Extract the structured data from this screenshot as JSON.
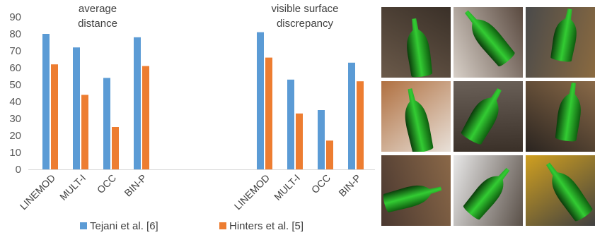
{
  "chart_data": {
    "type": "bar",
    "ylim": [
      0,
      90
    ],
    "yticks": [
      0,
      10,
      20,
      30,
      40,
      50,
      60,
      70,
      80,
      90
    ],
    "grid": false,
    "legend_position": "bottom",
    "series_colors": [
      "#5b9bd5",
      "#ed7d31"
    ],
    "series": [
      {
        "name": "Tejani et al. [6]"
      },
      {
        "name": "Hinters et al. [5]"
      }
    ],
    "panels": [
      {
        "title_lines": [
          "average",
          "distance"
        ],
        "categories": [
          "LINEMOD",
          "MULT-I",
          "OCC",
          "BIN-P"
        ],
        "values": [
          [
            80,
            72,
            54,
            78
          ],
          [
            62,
            44,
            25,
            61
          ]
        ]
      },
      {
        "title_lines": [
          "visible surface",
          "discrepancy"
        ],
        "categories": [
          "LINEMOD",
          "MULT-I",
          "OCC",
          "BIN-P"
        ],
        "values": [
          [
            81,
            53,
            35,
            63
          ],
          [
            66,
            33,
            17,
            52
          ]
        ]
      }
    ]
  },
  "thumbnails": {
    "overlay_color": "#33cc33",
    "items": [
      {
        "shape": "bottle"
      },
      {
        "shape": "bottle"
      },
      {
        "shape": "bottle"
      },
      {
        "shape": "bottle"
      },
      {
        "shape": "bottle"
      },
      {
        "shape": "bottle"
      },
      {
        "shape": "bottle"
      },
      {
        "shape": "bottle"
      },
      {
        "shape": "bottle"
      }
    ]
  }
}
